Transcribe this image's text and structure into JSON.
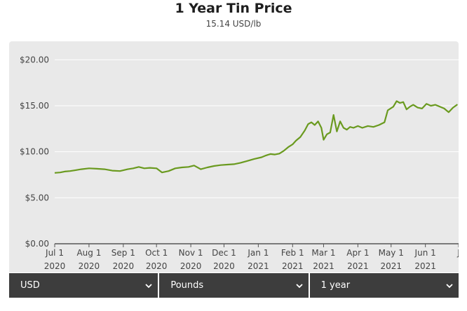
{
  "header": {
    "title": "1 Year Tin Price",
    "subtitle": "15.14 USD/lb"
  },
  "controls": {
    "currency": "USD",
    "unit": "Pounds",
    "range": "1 year"
  },
  "colors": {
    "line": "#6a9a1f",
    "panel": "#e9e9e9",
    "grid": "#ffffff",
    "axis": "#555555",
    "control_bg": "#3d3d3d"
  },
  "chart_data": {
    "type": "line",
    "title": "1 Year Tin Price",
    "xlabel": "",
    "ylabel": "",
    "ylim": [
      0,
      22
    ],
    "yticks": [
      "$0.00",
      "$5.00",
      "$10.00",
      "$15.00",
      "$20.00"
    ],
    "ytick_values": [
      0,
      5,
      10,
      15,
      20
    ],
    "xticks": [
      "Jul 1 2020",
      "Aug 1 2020",
      "Sep 1 2020",
      "Oct 1 2020",
      "Nov 1 2020",
      "Dec 1 2020",
      "Jan 1 2021",
      "Feb 1 2021",
      "Mar 1 2021",
      "Apr 1 2021",
      "May 1 2021",
      "Jun 1 2021",
      "J"
    ],
    "xtick_dates": [
      "2020-07-01",
      "2020-08-01",
      "2020-09-01",
      "2020-10-01",
      "2020-11-01",
      "2020-12-01",
      "2021-01-01",
      "2021-02-01",
      "2021-03-01",
      "2021-04-01",
      "2021-05-01",
      "2021-06-01",
      "2021-07-01"
    ],
    "xlim": [
      "2020-07-01",
      "2021-07-01"
    ],
    "grid": "horizontal",
    "series": [
      {
        "color": "#6a9a1f",
        "x": [
          "2020-07-01",
          "2020-07-06",
          "2020-07-10",
          "2020-07-15",
          "2020-07-20",
          "2020-07-25",
          "2020-08-01",
          "2020-08-08",
          "2020-08-15",
          "2020-08-22",
          "2020-08-29",
          "2020-09-05",
          "2020-09-10",
          "2020-09-15",
          "2020-09-20",
          "2020-09-25",
          "2020-10-01",
          "2020-10-06",
          "2020-10-12",
          "2020-10-18",
          "2020-10-24",
          "2020-10-30",
          "2020-11-04",
          "2020-11-10",
          "2020-11-16",
          "2020-11-22",
          "2020-11-28",
          "2020-12-04",
          "2020-12-10",
          "2020-12-16",
          "2020-12-22",
          "2020-12-28",
          "2021-01-04",
          "2021-01-08",
          "2021-01-12",
          "2021-01-16",
          "2021-01-20",
          "2021-01-24",
          "2021-01-28",
          "2021-02-01",
          "2021-02-04",
          "2021-02-08",
          "2021-02-12",
          "2021-02-15",
          "2021-02-18",
          "2021-02-21",
          "2021-02-24",
          "2021-02-27",
          "2021-03-01",
          "2021-03-04",
          "2021-03-07",
          "2021-03-10",
          "2021-03-13",
          "2021-03-16",
          "2021-03-19",
          "2021-03-22",
          "2021-03-25",
          "2021-03-28",
          "2021-04-01",
          "2021-04-05",
          "2021-04-10",
          "2021-04-15",
          "2021-04-20",
          "2021-04-25",
          "2021-04-28",
          "2021-05-03",
          "2021-05-06",
          "2021-05-09",
          "2021-05-12",
          "2021-05-15",
          "2021-05-18",
          "2021-05-21",
          "2021-05-25",
          "2021-05-29",
          "2021-06-02",
          "2021-06-06",
          "2021-06-10",
          "2021-06-14",
          "2021-06-18",
          "2021-06-22",
          "2021-06-26",
          "2021-06-30"
        ],
        "y": [
          7.7,
          7.75,
          7.85,
          7.9,
          8.0,
          8.1,
          8.2,
          8.15,
          8.1,
          7.95,
          7.9,
          8.1,
          8.2,
          8.35,
          8.2,
          8.25,
          8.2,
          7.75,
          7.9,
          8.2,
          8.3,
          8.35,
          8.5,
          8.1,
          8.3,
          8.45,
          8.55,
          8.6,
          8.65,
          8.8,
          9.0,
          9.2,
          9.4,
          9.6,
          9.75,
          9.7,
          9.8,
          10.1,
          10.5,
          10.8,
          11.2,
          11.6,
          12.3,
          13.0,
          13.2,
          12.9,
          13.3,
          12.6,
          11.3,
          11.9,
          12.1,
          14.0,
          12.2,
          13.3,
          12.6,
          12.4,
          12.7,
          12.6,
          12.8,
          12.6,
          12.8,
          12.7,
          12.9,
          13.2,
          14.5,
          14.9,
          15.5,
          15.3,
          15.4,
          14.6,
          14.9,
          15.1,
          14.8,
          14.7,
          15.2,
          15.0,
          15.1,
          14.9,
          14.7,
          14.3,
          14.8,
          15.14
        ]
      }
    ]
  }
}
